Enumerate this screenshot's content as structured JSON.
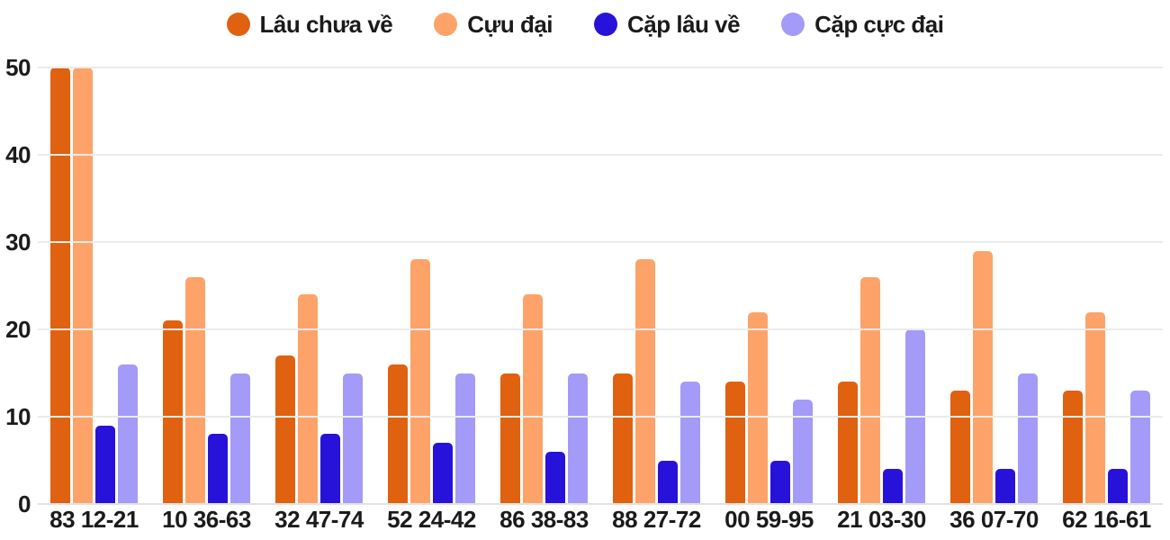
{
  "chart_data": {
    "type": "bar",
    "title": "",
    "xlabel": "",
    "ylabel": "",
    "categories": [
      "83 12-21",
      "10 36-63",
      "32 47-74",
      "52 24-42",
      "86 38-83",
      "88 27-72",
      "00 59-95",
      "21 03-30",
      "36 07-70",
      "62 16-61"
    ],
    "series": [
      {
        "name": "Lâu chưa về",
        "color": "#e0610f",
        "values": [
          50,
          21,
          17,
          16,
          15,
          15,
          14,
          14,
          13,
          13
        ]
      },
      {
        "name": "Cựu đại",
        "color": "#fda369",
        "values": [
          50,
          26,
          24,
          28,
          24,
          28,
          22,
          26,
          29,
          22
        ]
      },
      {
        "name": "Cặp lâu về",
        "color": "#2712da",
        "values": [
          9,
          8,
          8,
          7,
          6,
          5,
          5,
          4,
          4,
          4
        ]
      },
      {
        "name": "Cặp cực đại",
        "color": "#a49af7",
        "values": [
          16,
          15,
          15,
          15,
          15,
          14,
          12,
          20,
          15,
          13
        ]
      }
    ],
    "ylim": [
      0,
      50
    ],
    "yticks": [
      0,
      10,
      20,
      30,
      40,
      50
    ],
    "grid": true,
    "legend_position": "top"
  },
  "colors": {
    "text": "#1b1b1b",
    "gridline": "#ebebeb",
    "background": "#ffffff"
  }
}
